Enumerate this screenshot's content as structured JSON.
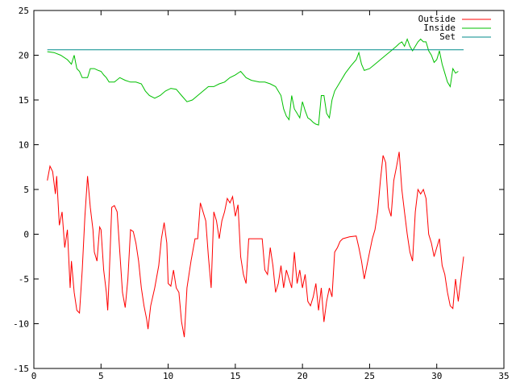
{
  "chart_data": {
    "type": "line",
    "title": "",
    "xlabel": "",
    "ylabel": "",
    "xlim": [
      0,
      35
    ],
    "ylim": [
      -15,
      25
    ],
    "xticks": [
      0,
      5,
      10,
      15,
      20,
      25,
      30,
      35
    ],
    "yticks": [
      -15,
      -10,
      -5,
      0,
      5,
      10,
      15,
      20,
      25
    ],
    "grid": false,
    "legend_position": "top-right",
    "series": [
      {
        "name": "Outside",
        "color": "#ff0000",
        "points": [
          [
            1.0,
            6.0
          ],
          [
            1.2,
            7.6
          ],
          [
            1.4,
            7.0
          ],
          [
            1.6,
            4.5
          ],
          [
            1.7,
            6.5
          ],
          [
            1.9,
            1.0
          ],
          [
            2.1,
            2.5
          ],
          [
            2.3,
            -1.5
          ],
          [
            2.5,
            0.5
          ],
          [
            2.7,
            -6.0
          ],
          [
            2.8,
            -3.0
          ],
          [
            3.0,
            -6.5
          ],
          [
            3.2,
            -8.5
          ],
          [
            3.4,
            -8.8
          ],
          [
            3.6,
            -4.0
          ],
          [
            3.8,
            2.0
          ],
          [
            4.0,
            6.5
          ],
          [
            4.2,
            3.0
          ],
          [
            4.4,
            0.5
          ],
          [
            4.5,
            -2.0
          ],
          [
            4.7,
            -3.0
          ],
          [
            4.9,
            0.8
          ],
          [
            5.0,
            0.5
          ],
          [
            5.2,
            -4.0
          ],
          [
            5.4,
            -6.5
          ],
          [
            5.5,
            -8.5
          ],
          [
            5.6,
            -5.0
          ],
          [
            5.8,
            3.0
          ],
          [
            6.0,
            3.2
          ],
          [
            6.2,
            2.5
          ],
          [
            6.4,
            -2.0
          ],
          [
            6.6,
            -6.5
          ],
          [
            6.8,
            -8.2
          ],
          [
            7.0,
            -5.0
          ],
          [
            7.2,
            0.5
          ],
          [
            7.4,
            0.3
          ],
          [
            7.6,
            -1.0
          ],
          [
            7.8,
            -3.0
          ],
          [
            8.0,
            -6.0
          ],
          [
            8.2,
            -8.0
          ],
          [
            8.4,
            -9.5
          ],
          [
            8.5,
            -10.6
          ],
          [
            8.7,
            -8.0
          ],
          [
            9.0,
            -6.0
          ],
          [
            9.3,
            -3.5
          ],
          [
            9.5,
            -0.5
          ],
          [
            9.7,
            1.3
          ],
          [
            9.9,
            -1.0
          ],
          [
            10.0,
            -5.5
          ],
          [
            10.2,
            -5.8
          ],
          [
            10.4,
            -4.0
          ],
          [
            10.6,
            -6.0
          ],
          [
            10.8,
            -6.5
          ],
          [
            11.0,
            -9.8
          ],
          [
            11.2,
            -11.5
          ],
          [
            11.4,
            -6.0
          ],
          [
            11.7,
            -3.0
          ],
          [
            12.0,
            -0.5
          ],
          [
            12.2,
            -0.5
          ],
          [
            12.4,
            3.5
          ],
          [
            12.6,
            2.5
          ],
          [
            12.8,
            1.5
          ],
          [
            13.0,
            -2.5
          ],
          [
            13.2,
            -6.0
          ],
          [
            13.4,
            2.5
          ],
          [
            13.6,
            1.5
          ],
          [
            13.8,
            -0.5
          ],
          [
            14.0,
            1.5
          ],
          [
            14.2,
            2.5
          ],
          [
            14.4,
            4.0
          ],
          [
            14.6,
            3.5
          ],
          [
            14.8,
            4.2
          ],
          [
            15.0,
            2.0
          ],
          [
            15.2,
            3.3
          ],
          [
            15.4,
            -2.5
          ],
          [
            15.6,
            -4.5
          ],
          [
            15.8,
            -5.5
          ],
          [
            16.0,
            -0.5
          ],
          [
            16.5,
            -0.5
          ],
          [
            17.0,
            -0.5
          ],
          [
            17.2,
            -4.0
          ],
          [
            17.4,
            -4.5
          ],
          [
            17.6,
            -1.5
          ],
          [
            17.8,
            -3.5
          ],
          [
            18.0,
            -6.5
          ],
          [
            18.2,
            -5.5
          ],
          [
            18.4,
            -3.5
          ],
          [
            18.6,
            -6.0
          ],
          [
            18.8,
            -4.0
          ],
          [
            19.0,
            -5.0
          ],
          [
            19.2,
            -6.0
          ],
          [
            19.4,
            -2.0
          ],
          [
            19.6,
            -5.5
          ],
          [
            19.8,
            -4.0
          ],
          [
            20.0,
            -6.0
          ],
          [
            20.2,
            -4.5
          ],
          [
            20.4,
            -7.5
          ],
          [
            20.6,
            -8.0
          ],
          [
            20.8,
            -7.0
          ],
          [
            21.0,
            -5.5
          ],
          [
            21.2,
            -8.5
          ],
          [
            21.4,
            -6.0
          ],
          [
            21.6,
            -9.8
          ],
          [
            21.8,
            -7.5
          ],
          [
            22.0,
            -6.0
          ],
          [
            22.2,
            -7.0
          ],
          [
            22.4,
            -2.0
          ],
          [
            22.6,
            -1.5
          ],
          [
            22.8,
            -0.8
          ],
          [
            23.0,
            -0.5
          ],
          [
            23.5,
            -0.3
          ],
          [
            24.0,
            -0.2
          ],
          [
            24.2,
            -1.5
          ],
          [
            24.4,
            -3.0
          ],
          [
            24.6,
            -5.0
          ],
          [
            24.8,
            -3.5
          ],
          [
            25.0,
            -2.0
          ],
          [
            25.2,
            -0.5
          ],
          [
            25.4,
            0.5
          ],
          [
            25.6,
            2.5
          ],
          [
            25.8,
            6.0
          ],
          [
            26.0,
            8.8
          ],
          [
            26.2,
            8.0
          ],
          [
            26.4,
            3.0
          ],
          [
            26.6,
            2.0
          ],
          [
            26.8,
            6.0
          ],
          [
            27.0,
            7.5
          ],
          [
            27.2,
            9.2
          ],
          [
            27.4,
            5.0
          ],
          [
            27.6,
            2.5
          ],
          [
            27.8,
            0.0
          ],
          [
            28.0,
            -2.0
          ],
          [
            28.2,
            -3.0
          ],
          [
            28.4,
            2.5
          ],
          [
            28.6,
            5.0
          ],
          [
            28.8,
            4.5
          ],
          [
            29.0,
            5.0
          ],
          [
            29.2,
            4.0
          ],
          [
            29.4,
            0.0
          ],
          [
            29.6,
            -1.0
          ],
          [
            29.8,
            -2.5
          ],
          [
            30.0,
            -1.5
          ],
          [
            30.2,
            -0.5
          ],
          [
            30.4,
            -3.5
          ],
          [
            30.6,
            -4.5
          ],
          [
            30.8,
            -6.5
          ],
          [
            31.0,
            -8.0
          ],
          [
            31.2,
            -8.3
          ],
          [
            31.4,
            -5.0
          ],
          [
            31.6,
            -7.5
          ],
          [
            31.8,
            -5.0
          ],
          [
            32.0,
            -2.5
          ]
        ]
      },
      {
        "name": "Inside",
        "color": "#00c000",
        "points": [
          [
            1.0,
            20.4
          ],
          [
            1.5,
            20.3
          ],
          [
            2.0,
            20.0
          ],
          [
            2.5,
            19.5
          ],
          [
            2.8,
            19.0
          ],
          [
            3.0,
            20.0
          ],
          [
            3.2,
            18.5
          ],
          [
            3.4,
            18.2
          ],
          [
            3.6,
            17.5
          ],
          [
            4.0,
            17.5
          ],
          [
            4.2,
            18.5
          ],
          [
            4.5,
            18.5
          ],
          [
            4.8,
            18.3
          ],
          [
            5.0,
            18.2
          ],
          [
            5.2,
            17.8
          ],
          [
            5.4,
            17.5
          ],
          [
            5.6,
            17.0
          ],
          [
            6.0,
            17.0
          ],
          [
            6.4,
            17.5
          ],
          [
            6.8,
            17.2
          ],
          [
            7.2,
            17.0
          ],
          [
            7.6,
            17.0
          ],
          [
            8.0,
            16.8
          ],
          [
            8.3,
            16.0
          ],
          [
            8.6,
            15.5
          ],
          [
            9.0,
            15.2
          ],
          [
            9.4,
            15.5
          ],
          [
            9.8,
            16.0
          ],
          [
            10.2,
            16.3
          ],
          [
            10.6,
            16.2
          ],
          [
            11.0,
            15.5
          ],
          [
            11.4,
            14.8
          ],
          [
            11.8,
            15.0
          ],
          [
            12.2,
            15.5
          ],
          [
            12.6,
            16.0
          ],
          [
            13.0,
            16.5
          ],
          [
            13.4,
            16.5
          ],
          [
            13.8,
            16.8
          ],
          [
            14.2,
            17.0
          ],
          [
            14.6,
            17.5
          ],
          [
            15.0,
            17.8
          ],
          [
            15.4,
            18.2
          ],
          [
            15.8,
            17.5
          ],
          [
            16.2,
            17.2
          ],
          [
            16.8,
            17.0
          ],
          [
            17.2,
            17.0
          ],
          [
            17.6,
            16.8
          ],
          [
            18.0,
            16.5
          ],
          [
            18.4,
            15.5
          ],
          [
            18.6,
            14.0
          ],
          [
            18.8,
            13.2
          ],
          [
            19.0,
            12.8
          ],
          [
            19.2,
            15.5
          ],
          [
            19.4,
            14.0
          ],
          [
            19.6,
            13.5
          ],
          [
            19.8,
            13.0
          ],
          [
            20.0,
            14.8
          ],
          [
            20.2,
            13.8
          ],
          [
            20.4,
            13.0
          ],
          [
            20.6,
            12.8
          ],
          [
            20.8,
            12.5
          ],
          [
            21.0,
            12.3
          ],
          [
            21.2,
            12.2
          ],
          [
            21.4,
            15.5
          ],
          [
            21.6,
            15.5
          ],
          [
            21.8,
            13.5
          ],
          [
            22.0,
            13.0
          ],
          [
            22.2,
            15.0
          ],
          [
            22.4,
            16.0
          ],
          [
            22.8,
            17.0
          ],
          [
            23.2,
            18.0
          ],
          [
            23.6,
            18.8
          ],
          [
            24.0,
            19.5
          ],
          [
            24.2,
            20.3
          ],
          [
            24.4,
            19.0
          ],
          [
            24.6,
            18.3
          ],
          [
            25.0,
            18.5
          ],
          [
            25.4,
            19.0
          ],
          [
            25.8,
            19.5
          ],
          [
            26.2,
            20.0
          ],
          [
            26.6,
            20.5
          ],
          [
            27.0,
            21.0
          ],
          [
            27.2,
            21.3
          ],
          [
            27.4,
            21.5
          ],
          [
            27.6,
            21.0
          ],
          [
            27.8,
            21.8
          ],
          [
            28.0,
            21.0
          ],
          [
            28.2,
            20.5
          ],
          [
            28.4,
            21.0
          ],
          [
            28.6,
            21.5
          ],
          [
            28.8,
            21.8
          ],
          [
            29.0,
            21.5
          ],
          [
            29.2,
            21.5
          ],
          [
            29.4,
            20.5
          ],
          [
            29.6,
            20.0
          ],
          [
            29.8,
            19.2
          ],
          [
            30.0,
            19.5
          ],
          [
            30.2,
            20.5
          ],
          [
            30.4,
            19.0
          ],
          [
            30.6,
            18.0
          ],
          [
            30.8,
            17.0
          ],
          [
            31.0,
            16.5
          ],
          [
            31.2,
            18.5
          ],
          [
            31.4,
            18.0
          ],
          [
            31.6,
            18.2
          ]
        ]
      },
      {
        "name": "Set",
        "color": "#008b8b",
        "points": [
          [
            1.0,
            20.6
          ],
          [
            32.0,
            20.6
          ]
        ]
      }
    ]
  }
}
